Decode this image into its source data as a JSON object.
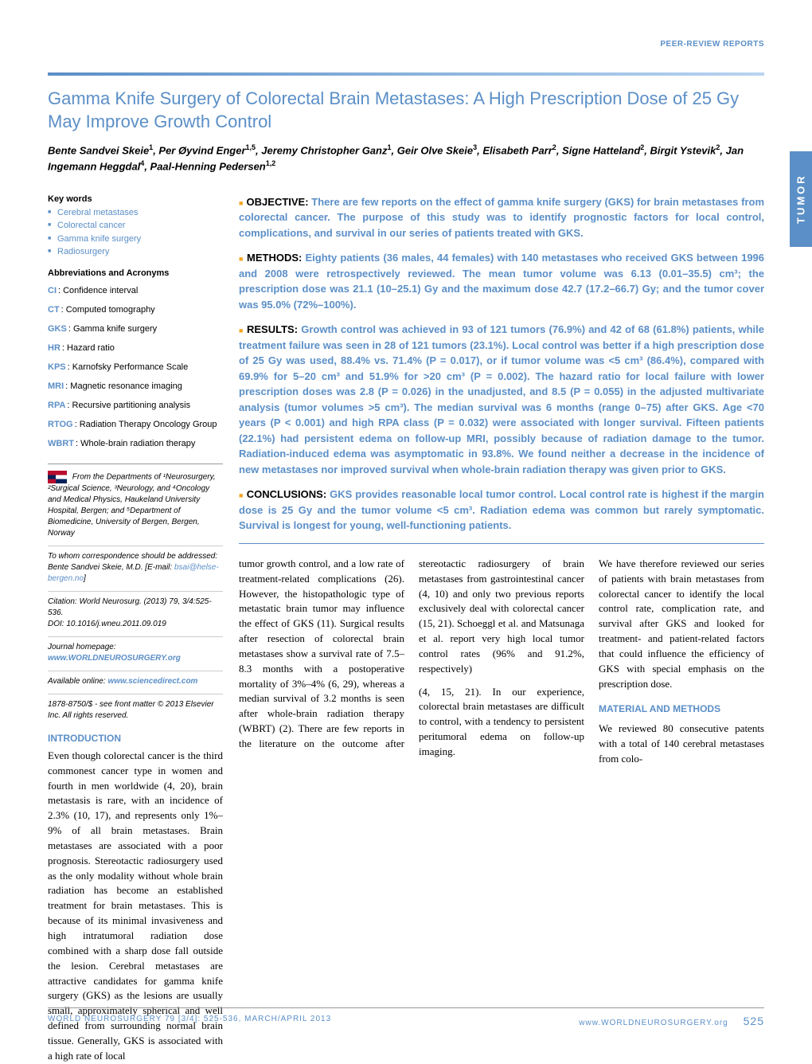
{
  "header_label": "PEER-REVIEW REPORTS",
  "side_tab": "TUMOR",
  "title": "Gamma Knife Surgery of Colorectal Brain Metastases: A High Prescription Dose of 25 Gy May Improve Growth Control",
  "authors_html": "Bente Sandvei Skeie<sup>1</sup>, Per Øyvind Enger<sup>1,5</sup>, Jeremy Christopher Ganz<sup>1</sup>, Geir Olve Skeie<sup>3</sup>, Elisabeth Parr<sup>2</sup>, Signe Hatteland<sup>2</sup>, Birgit Ystevik<sup>2</sup>, Jan Ingemann Heggdal<sup>4</sup>, Paal-Henning Pedersen<sup>1,2</sup>",
  "keywords_heading": "Key words",
  "keywords": [
    "Cerebral metastases",
    "Colorectal cancer",
    "Gamma knife surgery",
    "Radiosurgery"
  ],
  "abbrev_heading": "Abbreviations and Acronyms",
  "abbrevs": [
    {
      "k": "CI",
      "v": "Confidence interval"
    },
    {
      "k": "CT",
      "v": "Computed tomography"
    },
    {
      "k": "GKS",
      "v": "Gamma knife surgery"
    },
    {
      "k": "HR",
      "v": "Hazard ratio"
    },
    {
      "k": "KPS",
      "v": "Karnofsky Performance Scale"
    },
    {
      "k": "MRI",
      "v": "Magnetic resonance imaging"
    },
    {
      "k": "RPA",
      "v": "Recursive partitioning analysis"
    },
    {
      "k": "RTOG",
      "v": "Radiation Therapy Oncology Group"
    },
    {
      "k": "WBRT",
      "v": "Whole-brain radiation therapy"
    }
  ],
  "affil": "From the Departments of ¹Neurosurgery, ²Surgical Science, ³Neurology, and ⁴Oncology and Medical Physics, Haukeland University Hospital, Bergen; and ⁵Department of Biomedicine, University of Bergen, Bergen, Norway",
  "correspondence": "To whom correspondence should be addressed: Bente Sandvei Skeie, M.D. [E-mail:",
  "email": "bsai@helse-bergen.no",
  "citation": "Citation: World Neurosurg. (2013) 79, 3/4:525-536.",
  "doi": "DOI: 10.1016/j.wneu.2011.09.019",
  "homepage_label": "Journal homepage:",
  "homepage": "www.WORLDNEUROSURGERY.org",
  "online_label": "Available online:",
  "online": "www.sciencedirect.com",
  "copyright": "1878-8750/$ - see front matter © 2013 Elsevier Inc. All rights reserved.",
  "intro_heading": "INTRODUCTION",
  "intro": "Even though colorectal cancer is the third commonest cancer type in women and fourth in men worldwide (4, 20), brain metastasis is rare, with an incidence of 2.3% (10, 17), and represents only 1%–9% of all brain metastases. Brain metastases are associated with a poor prognosis. Stereotactic radiosurgery used as the only modality without whole brain radiation has become an established treatment for brain metastases. This is because of its minimal invasiveness and high intratumoral radiation dose combined with a sharp dose fall outside the lesion. Cerebral metastases are attractive candidates for gamma knife surgery (GKS) as the lesions are usually small, approximately spherical and well defined from surrounding normal brain tissue. Generally, GKS is associated with a high rate of local",
  "abstract": {
    "objective": {
      "label": "OBJECTIVE:",
      "text": "There are few reports on the effect of gamma knife surgery (GKS) for brain metastases from colorectal cancer. The purpose of this study was to identify prognostic factors for local control, complications, and survival in our series of patients treated with GKS."
    },
    "methods": {
      "label": "METHODS:",
      "text": "Eighty patients (36 males, 44 females) with 140 metastases who received GKS between 1996 and 2008 were retrospectively reviewed. The mean tumor volume was 6.13 (0.01–35.5) cm³; the prescription dose was 21.1 (10–25.1) Gy and the maximum dose 42.7 (17.2–66.7) Gy; and the tumor cover was 95.0% (72%–100%)."
    },
    "results": {
      "label": "RESULTS:",
      "text": "Growth control was achieved in 93 of 121 tumors (76.9%) and 42 of 68 (61.8%) patients, while treatment failure was seen in 28 of 121 tumors (23.1%). Local control was better if a high prescription dose of 25 Gy was used, 88.4% vs. 71.4% (P = 0.017), or if tumor volume was <5 cm³ (86.4%), compared with 69.9% for 5–20 cm³ and 51.9% for >20 cm³ (P = 0.002). The hazard ratio for local failure with lower prescription doses was 2.8 (P = 0.026) in the unadjusted, and 8.5 (P = 0.055) in the adjusted multivariate analysis (tumor volumes >5 cm³). The median survival was 6 months (range 0–75) after GKS. Age <70 years (P < 0.001) and high RPA class (P = 0.032) were associated with longer survival. Fifteen patients (22.1%) had persistent edema on follow-up MRI, possibly because of radiation damage to the tumor. Radiation-induced edema was asymptomatic in 93.8%. We found neither a decrease in the incidence of new metastases nor improved survival when whole-brain radiation therapy was given prior to GKS."
    },
    "conclusions": {
      "label": "CONCLUSIONS:",
      "text": "GKS provides reasonable local tumor control. Local control rate is highest if the margin dose is 25 Gy and the tumor volume <5 cm³. Radiation edema was common but rarely symptomatic. Survival is longest for young, well-functioning patients."
    }
  },
  "body_p1": "tumor growth control, and a low rate of treatment-related complications (26). However, the histopathologic type of metastatic brain tumor may influence the effect of GKS (11). Surgical results after resection of colorectal brain metastases show a survival rate of 7.5–8.3 months with a postoperative mortality of 3%–4% (6, 29), whereas a median survival of 3.2 months is seen after whole-brain radiation therapy (WBRT) (2). There are few reports in the literature on the outcome after stereotactic radiosurgery of brain metastases from gastrointestinal cancer (4, 10) and only two previous reports exclusively deal with colorectal cancer (15, 21). Schoeggl et al. and Matsunaga et al. report very high local tumor control rates (96% and 91.2%, respectively)",
  "body_p2": "(4, 15, 21). In our experience, colorectal brain metastases are difficult to control, with a tendency to persistent peritumoral edema on follow-up imaging.",
  "body_p3": "We have therefore reviewed our series of patients with brain metastases from colorectal cancer to identify the local control rate, complication rate, and survival after GKS and looked for treatment- and patient-related factors that could influence the efficiency of GKS with special emphasis on the prescription dose.",
  "methods_heading": "MATERIAL AND METHODS",
  "methods_body": "We reviewed 80 consecutive patents with a total of 140 cerebral metastases from colo-",
  "footer": {
    "left": "WORLD NEUROSURGERY 79 [3/4]: 525-536, MARCH/APRIL 2013",
    "right": "www.WORLDNEUROSURGERY.org",
    "page": "525"
  },
  "colors": {
    "accent": "#5b8fc7",
    "orange_sq": "#f5a623",
    "text": "#000000",
    "bg": "#ffffff"
  }
}
